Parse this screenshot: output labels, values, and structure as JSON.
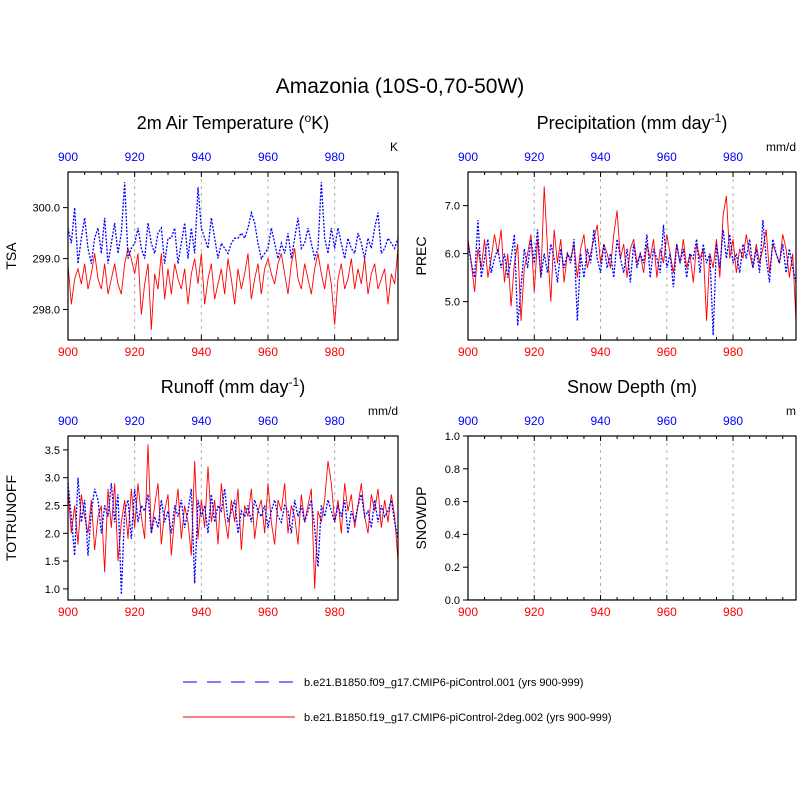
{
  "figure": {
    "title": "Amazonia (10S-0,70-50W)"
  },
  "colors": {
    "series_a": "#0000ff",
    "series_b": "#ff0000",
    "axis": "#000000",
    "grid": "#b0b0b0"
  },
  "legend": {
    "placement": "bottom",
    "entries": [
      {
        "label": "b.e21.B1850.f09_g17.CMIP6-piControl.001 (yrs 900-999)",
        "color": "#0000ff",
        "style": "dashed"
      },
      {
        "label": "b.e21.B1850.f19_g17.CMIP6-piControl-2deg.002 (yrs 900-999)",
        "color": "#ff0000",
        "style": "solid"
      }
    ]
  },
  "chart_data": [
    {
      "type": "line",
      "title": "2m Air Temperature (°K)",
      "title_parts": [
        "2m Air Temperature (",
        "o",
        "K)"
      ],
      "title_sup": "o",
      "ylabel": "TSA",
      "units": "K",
      "xlim": [
        900,
        999
      ],
      "ylim": [
        297.4,
        300.7
      ],
      "xticks": [
        900,
        920,
        940,
        960,
        980
      ],
      "xticklabels": [
        "900",
        "920",
        "940",
        "960",
        "980"
      ],
      "yticks": [
        298.0,
        299.0,
        300.0
      ],
      "yticklabels": [
        "298.0",
        "299.0",
        "300.0"
      ],
      "series": [
        {
          "name": "b.e21.B1850.f09_g17.CMIP6-piControl.001",
          "color": "#0000ff",
          "style": "dashed",
          "values": [
            299.6,
            299.3,
            300.0,
            298.9,
            299.4,
            299.8,
            299.2,
            298.9,
            299.4,
            299.6,
            299.1,
            299.8,
            298.9,
            299.3,
            299.7,
            299.1,
            299.5,
            300.5,
            299.0,
            299.2,
            299.3,
            299.6,
            299.2,
            299.0,
            299.7,
            299.3,
            299.1,
            299.5,
            299.6,
            298.9,
            299.4,
            299.4,
            299.6,
            298.9,
            299.3,
            299.7,
            299.0,
            299.6,
            299.1,
            300.4,
            299.6,
            299.4,
            299.2,
            299.8,
            299.4,
            299.0,
            299.3,
            299.2,
            299.1,
            299.3,
            299.4,
            299.4,
            299.5,
            299.4,
            299.6,
            299.9,
            299.7,
            299.3,
            299.0,
            299.1,
            299.2,
            299.6,
            299.3,
            299.0,
            299.3,
            299.1,
            299.5,
            299.0,
            299.4,
            299.8,
            299.2,
            299.3,
            299.6,
            299.3,
            299.0,
            299.2,
            300.5,
            299.4,
            299.1,
            299.6,
            299.2,
            299.6,
            299.3,
            299.0,
            299.4,
            299.2,
            299.1,
            299.5,
            299.3,
            299.0,
            299.4,
            299.2,
            299.6,
            299.9,
            299.1,
            299.2,
            299.4,
            299.3,
            299.2,
            299.4
          ]
        },
        {
          "name": "b.e21.B1850.f19_g17.CMIP6-piControl-2deg.002",
          "color": "#ff0000",
          "style": "solid",
          "values": [
            298.9,
            298.1,
            298.6,
            298.8,
            298.5,
            298.9,
            298.4,
            298.7,
            299.1,
            298.6,
            298.4,
            298.9,
            298.3,
            298.6,
            298.9,
            298.5,
            298.3,
            298.9,
            299.2,
            299.0,
            298.7,
            299.1,
            297.9,
            298.5,
            298.9,
            297.6,
            298.7,
            298.4,
            299.1,
            298.2,
            298.8,
            298.3,
            298.9,
            298.6,
            298.4,
            298.8,
            298.1,
            298.7,
            299.0,
            298.5,
            299.1,
            298.1,
            298.6,
            298.9,
            298.2,
            298.5,
            298.8,
            298.3,
            299.0,
            298.6,
            298.1,
            298.8,
            298.4,
            298.7,
            299.1,
            298.2,
            298.6,
            298.9,
            298.3,
            298.8,
            299.0,
            298.7,
            298.5,
            298.9,
            299.1,
            298.7,
            298.3,
            298.9,
            299.2,
            298.6,
            298.4,
            298.9,
            298.6,
            298.3,
            298.8,
            299.1,
            298.7,
            298.4,
            298.9,
            298.5,
            297.7,
            298.6,
            298.9,
            298.4,
            298.6,
            299.0,
            298.4,
            298.8,
            298.5,
            299.0,
            298.3,
            298.7,
            298.9,
            298.4,
            298.6,
            298.8,
            298.1,
            298.7,
            298.5,
            299.2
          ]
        }
      ]
    },
    {
      "type": "line",
      "title": "Precipitation (mm day⁻¹)",
      "title_parts": [
        "Precipitation (mm day",
        "-1",
        ")"
      ],
      "title_sup": "-1",
      "ylabel": "PREC",
      "units": "mm/d",
      "xlim": [
        900,
        999
      ],
      "ylim": [
        4.2,
        7.7
      ],
      "xticks": [
        900,
        920,
        940,
        960,
        980
      ],
      "xticklabels": [
        "900",
        "920",
        "940",
        "960",
        "980"
      ],
      "yticks": [
        5.0,
        6.0,
        7.0
      ],
      "yticklabels": [
        "5.0",
        "6.0",
        "7.0"
      ],
      "series": [
        {
          "name": "b.e21.B1850.f09_g17.CMIP6-piControl.001",
          "color": "#0000ff",
          "style": "dashed",
          "values": [
            6.2,
            5.8,
            5.5,
            6.7,
            5.5,
            5.9,
            6.3,
            5.6,
            5.9,
            6.1,
            5.7,
            6.0,
            5.5,
            5.9,
            6.4,
            4.5,
            5.3,
            6.1,
            5.7,
            6.3,
            5.8,
            6.5,
            5.5,
            6.0,
            5.6,
            6.2,
            5.9,
            5.4,
            6.1,
            5.7,
            6.0,
            5.8,
            6.3,
            4.6,
            6.0,
            5.5,
            6.1,
            5.8,
            6.5,
            5.9,
            5.6,
            6.2,
            5.7,
            6.0,
            5.5,
            6.3,
            5.9,
            5.6,
            6.1,
            5.4,
            6.2,
            5.7,
            6.0,
            5.8,
            6.4,
            5.5,
            6.1,
            5.9,
            5.6,
            6.6,
            5.7,
            6.0,
            5.3,
            6.2,
            5.8,
            6.1,
            5.5,
            6.0,
            5.9,
            6.3,
            5.6,
            6.2,
            5.8,
            6.0,
            4.3,
            6.2,
            5.7,
            6.5,
            5.9,
            6.4,
            5.8,
            6.0,
            5.6,
            6.2,
            5.9,
            6.3,
            5.7,
            6.1,
            5.6,
            6.7,
            5.9,
            5.4,
            6.3,
            6.0,
            5.8,
            6.2,
            5.6,
            6.1,
            5.7,
            5.4
          ]
        },
        {
          "name": "b.e21.B1850.f19_g17.CMIP6-piControl-2deg.002",
          "color": "#ff0000",
          "style": "solid",
          "values": [
            6.3,
            5.8,
            5.2,
            6.1,
            5.7,
            6.3,
            5.5,
            5.9,
            6.4,
            6.0,
            6.5,
            5.4,
            6.0,
            4.9,
            5.8,
            6.2,
            4.6,
            5.7,
            6.0,
            6.4,
            5.2,
            6.3,
            5.5,
            7.4,
            6.1,
            5.0,
            6.5,
            5.8,
            6.3,
            5.4,
            6.0,
            5.9,
            6.2,
            5.5,
            6.1,
            6.4,
            5.7,
            6.0,
            6.3,
            6.6,
            5.8,
            6.2,
            6.0,
            5.7,
            6.4,
            6.9,
            5.9,
            6.2,
            5.5,
            6.1,
            6.3,
            5.8,
            6.0,
            5.6,
            6.2,
            5.9,
            6.3,
            5.5,
            6.1,
            5.8,
            6.4,
            6.0,
            5.6,
            6.2,
            5.8,
            6.3,
            5.7,
            6.0,
            5.4,
            6.2,
            5.9,
            6.1,
            4.6,
            6.0,
            5.7,
            6.3,
            5.5,
            6.8,
            7.2,
            5.9,
            6.3,
            5.6,
            6.1,
            5.9,
            6.4,
            6.0,
            5.7,
            6.2,
            5.8,
            6.1,
            6.5,
            5.6,
            6.2,
            6.0,
            5.8,
            6.4,
            6.1,
            5.5,
            6.0,
            4.6
          ]
        }
      ]
    },
    {
      "type": "line",
      "title": "Runoff (mm day⁻¹)",
      "title_parts": [
        "Runoff (mm day",
        "-1",
        ")"
      ],
      "title_sup": "-1",
      "ylabel": "TOTRUNOFF",
      "units": "mm/d",
      "xlim": [
        900,
        999
      ],
      "ylim": [
        0.8,
        3.75
      ],
      "xticks": [
        900,
        920,
        940,
        960,
        980
      ],
      "xticklabels": [
        "900",
        "920",
        "940",
        "960",
        "980"
      ],
      "yticks": [
        1.0,
        1.5,
        2.0,
        2.5,
        3.0,
        3.5
      ],
      "yticklabels": [
        "1.0",
        "1.5",
        "2.0",
        "2.5",
        "3.0",
        "3.5"
      ],
      "series": [
        {
          "name": "b.e21.B1850.f09_g17.CMIP6-piControl.001",
          "color": "#0000ff",
          "style": "dashed",
          "values": [
            2.9,
            2.3,
            1.6,
            3.0,
            2.2,
            2.6,
            1.6,
            2.4,
            2.8,
            2.6,
            2.0,
            2.5,
            2.3,
            2.9,
            2.2,
            2.7,
            0.9,
            2.4,
            2.6,
            1.9,
            2.8,
            2.2,
            2.5,
            2.4,
            2.7,
            2.0,
            2.3,
            2.1,
            2.6,
            2.2,
            2.4,
            2.0,
            2.5,
            2.3,
            2.6,
            2.1,
            2.4,
            2.8,
            1.1,
            2.6,
            2.3,
            2.5,
            2.0,
            2.7,
            2.2,
            2.5,
            2.4,
            2.8,
            2.2,
            2.4,
            2.6,
            2.0,
            2.4,
            2.3,
            2.5,
            2.2,
            2.6,
            2.4,
            2.3,
            2.5,
            2.1,
            2.4,
            2.6,
            2.3,
            2.2,
            2.5,
            2.4,
            2.0,
            2.6,
            2.3,
            2.5,
            2.2,
            2.4,
            2.6,
            2.1,
            1.4,
            2.5,
            2.3,
            2.6,
            2.4,
            2.2,
            2.5,
            2.3,
            2.6,
            2.0,
            2.4,
            2.2,
            2.5,
            2.7,
            2.3,
            2.4,
            2.1,
            2.6,
            2.2,
            2.5,
            2.3,
            2.4,
            2.6,
            2.2,
            1.9
          ]
        },
        {
          "name": "b.e21.B1850.f19_g17.CMIP6-piControl-2deg.002",
          "color": "#ff0000",
          "style": "solid",
          "values": [
            2.8,
            2.0,
            2.5,
            1.8,
            2.7,
            2.3,
            2.0,
            2.6,
            1.7,
            2.3,
            2.5,
            1.3,
            2.8,
            2.1,
            2.9,
            1.5,
            2.2,
            2.6,
            1.9,
            2.8,
            2.1,
            2.9,
            2.3,
            1.9,
            3.6,
            2.0,
            2.5,
            2.9,
            1.8,
            2.4,
            2.7,
            1.6,
            2.3,
            2.8,
            1.9,
            2.5,
            2.2,
            1.6,
            3.3,
            1.9,
            2.6,
            2.1,
            3.2,
            2.2,
            2.6,
            1.8,
            2.9,
            2.3,
            1.9,
            2.6,
            2.2,
            2.8,
            1.7,
            2.5,
            2.3,
            2.8,
            1.9,
            2.4,
            2.6,
            2.0,
            2.9,
            2.2,
            1.8,
            2.6,
            2.4,
            2.9,
            2.0,
            2.5,
            2.3,
            1.8,
            2.7,
            2.2,
            2.5,
            2.8,
            1.0,
            2.4,
            2.2,
            2.6,
            3.3,
            2.9,
            2.2,
            2.6,
            2.0,
            2.9,
            2.4,
            2.7,
            2.1,
            2.5,
            2.9,
            2.3,
            2.0,
            2.7,
            2.4,
            2.8,
            2.1,
            2.6,
            2.2,
            2.7,
            2.3,
            1.5
          ]
        }
      ]
    },
    {
      "type": "line",
      "title": "Snow Depth (m)",
      "title_parts": [
        "Snow Depth (m)",
        "",
        ""
      ],
      "title_sup": "",
      "ylabel": "SNOWDP",
      "units": "m",
      "xlim": [
        900,
        999
      ],
      "ylim": [
        0.0,
        1.0
      ],
      "xticks": [
        900,
        920,
        940,
        960,
        980
      ],
      "xticklabels": [
        "900",
        "920",
        "940",
        "960",
        "980"
      ],
      "yticks": [
        0.0,
        0.2,
        0.4,
        0.6,
        0.8,
        1.0
      ],
      "yticklabels": [
        "0.0",
        "0.2",
        "0.4",
        "0.6",
        "0.8",
        "1.0"
      ],
      "series": [
        {
          "name": "b.e21.B1850.f09_g17.CMIP6-piControl.001",
          "color": "#0000ff",
          "style": "dashed",
          "constant": 0.0
        },
        {
          "name": "b.e21.B1850.f19_g17.CMIP6-piControl-2deg.002",
          "color": "#ff0000",
          "style": "solid",
          "constant": 0.0
        }
      ]
    }
  ]
}
